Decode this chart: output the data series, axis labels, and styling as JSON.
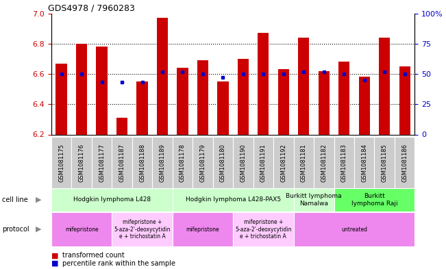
{
  "title": "GDS4978 / 7960283",
  "samples": [
    "GSM1081175",
    "GSM1081176",
    "GSM1081177",
    "GSM1081187",
    "GSM1081188",
    "GSM1081189",
    "GSM1081178",
    "GSM1081179",
    "GSM1081180",
    "GSM1081190",
    "GSM1081191",
    "GSM1081192",
    "GSM1081181",
    "GSM1081182",
    "GSM1081183",
    "GSM1081184",
    "GSM1081185",
    "GSM1081186"
  ],
  "transformed_count": [
    6.67,
    6.8,
    6.78,
    6.31,
    6.55,
    6.97,
    6.64,
    6.69,
    6.55,
    6.7,
    6.87,
    6.63,
    6.84,
    6.62,
    6.68,
    6.58,
    6.84,
    6.65
  ],
  "percentile_rank": [
    50,
    50,
    43,
    43,
    43,
    52,
    52,
    50,
    47,
    50,
    50,
    50,
    52,
    52,
    50,
    45,
    52,
    50
  ],
  "bar_color": "#cc0000",
  "dot_color": "#0000cc",
  "ylim_left": [
    6.2,
    7.0
  ],
  "ylim_right": [
    0,
    100
  ],
  "yticks_left": [
    6.2,
    6.4,
    6.6,
    6.8,
    7.0
  ],
  "yticks_right": [
    0,
    25,
    50,
    75,
    100
  ],
  "ytick_labels_right": [
    "0",
    "25",
    "50",
    "75",
    "100%"
  ],
  "hlines": [
    6.4,
    6.6,
    6.8
  ],
  "xtick_bg_color": "#cccccc",
  "cell_line_groups": [
    {
      "label": "Hodgkin lymphoma L428",
      "start": 0,
      "end": 5,
      "color": "#ccffcc"
    },
    {
      "label": "Hodgkin lymphoma L428-PAX5",
      "start": 6,
      "end": 11,
      "color": "#ccffcc"
    },
    {
      "label": "Burkitt lymphoma\nNamalwa",
      "start": 12,
      "end": 13,
      "color": "#ccffcc"
    },
    {
      "label": "Burkitt\nlymphoma Raji",
      "start": 14,
      "end": 17,
      "color": "#66ff66"
    }
  ],
  "protocol_groups": [
    {
      "label": "mifepristone",
      "start": 0,
      "end": 2,
      "color": "#ee88ee"
    },
    {
      "label": "mifepristone +\n5-aza-2'-deoxycytidin\ne + trichostatin A",
      "start": 3,
      "end": 5,
      "color": "#ffccff"
    },
    {
      "label": "mifepristone",
      "start": 6,
      "end": 8,
      "color": "#ee88ee"
    },
    {
      "label": "mifepristone +\n5-aza-2'-deoxycytidin\ne + trichostatin A",
      "start": 9,
      "end": 11,
      "color": "#ffccff"
    },
    {
      "label": "untreated",
      "start": 12,
      "end": 17,
      "color": "#ee88ee"
    }
  ]
}
